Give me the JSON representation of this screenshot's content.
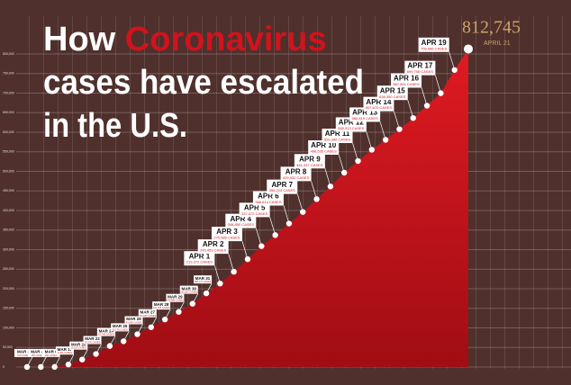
{
  "chart_data": {
    "type": "area",
    "title": [
      "How",
      "Coronavirus",
      "cases have escalated",
      "in the U.S."
    ],
    "categories": [
      "MAR 2",
      "MAR 4",
      "MAR 6",
      "MAR 17",
      "MAR 20",
      "MAR 22",
      "MAR 24",
      "MAR 25",
      "MAR 26",
      "MAR 27",
      "MAR 28",
      "MAR 29",
      "MAR 30",
      "MAR 31",
      "APR 1",
      "APR 2",
      "APR 3",
      "APR 4",
      "APR 5",
      "APR 6",
      "APR 7",
      "APR 8",
      "APR 9",
      "APR 10",
      "APR 11",
      "APR 12",
      "APR 13",
      "APR 14",
      "APR 15",
      "APR 16",
      "APR 17",
      "APR 19",
      "APRIL 21"
    ],
    "values": [
      100,
      150,
      260,
      6421,
      19100,
      33276,
      53740,
      65778,
      83836,
      101657,
      121478,
      140886,
      161807,
      188172,
      213372,
      243453,
      275586,
      308850,
      337072,
      366614,
      396223,
      429052,
      461437,
      496535,
      526396,
      555313,
      580619,
      607670,
      636350,
      667801,
      699706,
      759086,
      812745
    ],
    "value_labels": [
      "100 CASES",
      "150 CASES",
      "260 CASES",
      "6,421 CASES",
      "19,100 CASES",
      "33,276 CASES",
      "53,740 CASES",
      "65,778 CASES",
      "83,836 CASES",
      "101,657 CASES",
      "121,478 CASES",
      "140,886 CASES",
      "161,807 CASES",
      "188,172 CASES",
      "213,372 CASES",
      "243,453 CASES",
      "275,586 CASES",
      "308,850 CASES",
      "337,072 CASES",
      "366,614 CASES",
      "396,223 CASES",
      "429,052 CASES",
      "461,437 CASES",
      "496,535 CASES",
      "526,396 CASES",
      "555,313 CASES",
      "580,619 CASES",
      "607,670 CASES",
      "636,350 CASES",
      "667,801 CASES",
      "699,706 CASES",
      "759,086 CASES",
      "812,745"
    ],
    "color": "#d0131d",
    "highlight_color": "#c9a468",
    "ylim": [
      0,
      800000
    ],
    "yticks": [
      0,
      {
        "value": 50000,
        "label": "50,000"
      },
      {
        "value": 100000,
        "label": "100,000"
      },
      {
        "value": 150000,
        "label": "150,000"
      },
      {
        "value": 200000,
        "label": "200,000"
      },
      {
        "value": 250000,
        "label": "250,000"
      },
      {
        "value": 300000,
        "label": "300,000"
      },
      {
        "value": 350000,
        "label": "350,000"
      },
      {
        "value": 400000,
        "label": "400,000"
      },
      {
        "value": 450000,
        "label": "450,000"
      },
      {
        "value": 500000,
        "label": "500,000"
      },
      {
        "value": 550000,
        "label": "550,000"
      },
      {
        "value": 600000,
        "label": "600,000"
      },
      {
        "value": 650000,
        "label": "650,000"
      },
      {
        "value": 700000,
        "label": "700,000"
      },
      {
        "value": 750000,
        "label": "750,000"
      },
      {
        "value": 800000,
        "label": "800,000"
      }
    ],
    "grid": true
  }
}
